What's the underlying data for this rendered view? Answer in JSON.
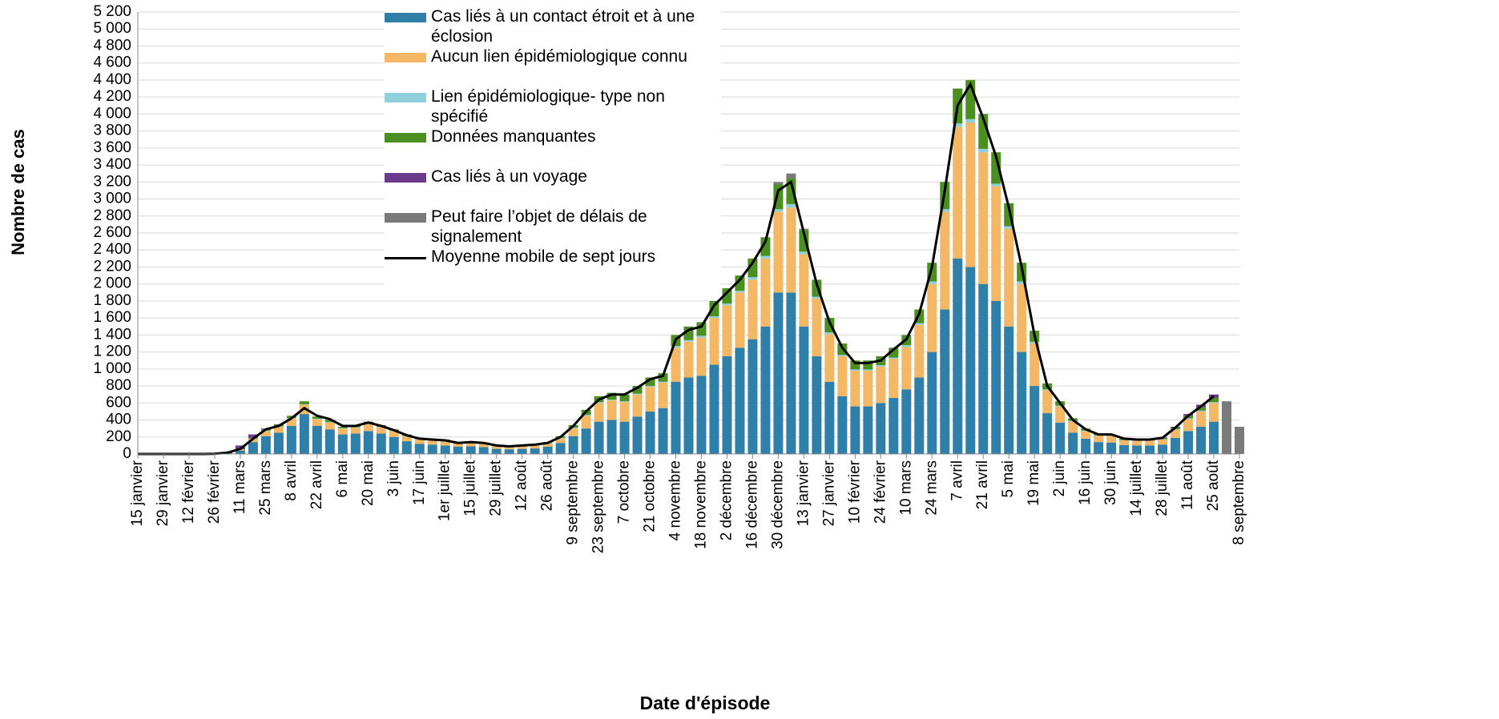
{
  "chart_data": {
    "type": "bar",
    "stacked": true,
    "x_label": "Date d'épisode",
    "y_label": "Nombre de cas",
    "categories": [
      "15 janvier",
      null,
      "29 janvier",
      null,
      "12 février",
      null,
      "26 février",
      null,
      "11 mars",
      null,
      "25 mars",
      null,
      "8 avril",
      null,
      "22 avril",
      null,
      "6 mai",
      null,
      "20 mai",
      null,
      "3 juin",
      null,
      "17 juin",
      null,
      "1er juillet",
      null,
      "15 juillet",
      null,
      "29 juillet",
      null,
      "12 août",
      null,
      "26 août",
      null,
      "9 septembre",
      null,
      "23 septembre",
      null,
      "7 octobre",
      null,
      "21 octobre",
      null,
      "4 novembre",
      null,
      "18 novembre",
      null,
      "2 décembre",
      null,
      "16 décembre",
      null,
      "30 décembre",
      null,
      "13 janvier",
      null,
      "27 janvier",
      null,
      "10 février",
      null,
      "24 février",
      null,
      "10 mars",
      null,
      "24 mars",
      null,
      "7 avril",
      null,
      "21 avril",
      null,
      "5 mai",
      null,
      "19 mai",
      null,
      "2 juin",
      null,
      "16 juin",
      null,
      "30 juin",
      null,
      "14 juillet",
      null,
      "28 juillet",
      null,
      "11 août",
      null,
      "25 août",
      null,
      "8 septembre"
    ],
    "series": [
      {
        "name": "Cas liés à un contact étroit et à une éclosion",
        "color": "#2f7fa8",
        "values": [
          0,
          0,
          0,
          0,
          0,
          0,
          1,
          5,
          40,
          140,
          210,
          250,
          330,
          470,
          330,
          290,
          230,
          240,
          270,
          240,
          200,
          150,
          120,
          110,
          100,
          85,
          90,
          80,
          60,
          55,
          60,
          65,
          85,
          130,
          210,
          300,
          380,
          400,
          380,
          440,
          500,
          540,
          850,
          900,
          920,
          1050,
          1150,
          1250,
          1350,
          1500,
          1900,
          1900,
          1500,
          1150,
          850,
          680,
          560,
          560,
          600,
          660,
          760,
          900,
          1200,
          1700,
          2300,
          2200,
          2000,
          1800,
          1500,
          1200,
          800,
          480,
          370,
          250,
          180,
          140,
          135,
          105,
          100,
          100,
          110,
          190,
          270,
          320,
          380,
          0,
          0
        ]
      },
      {
        "name": "Aucun lien épidémiologique connu",
        "color": "#f2b866",
        "values": [
          0,
          0,
          0,
          0,
          0,
          0,
          0,
          2,
          10,
          40,
          60,
          70,
          90,
          110,
          80,
          80,
          70,
          70,
          80,
          75,
          70,
          60,
          55,
          55,
          55,
          45,
          50,
          40,
          30,
          30,
          30,
          35,
          40,
          55,
          90,
          150,
          220,
          230,
          230,
          260,
          290,
          300,
          400,
          420,
          450,
          550,
          600,
          650,
          700,
          800,
          950,
          1000,
          850,
          680,
          560,
          470,
          420,
          420,
          430,
          460,
          500,
          620,
          800,
          1150,
          1550,
          1700,
          1550,
          1350,
          1150,
          800,
          500,
          270,
          190,
          130,
          90,
          75,
          75,
          55,
          55,
          55,
          60,
          95,
          140,
          180,
          220,
          0,
          0
        ]
      },
      {
        "name": "Lien épidémiologique- type non spécifié",
        "color": "#8fd0dc",
        "values": [
          0,
          0,
          0,
          0,
          0,
          0,
          0,
          0,
          0,
          0,
          5,
          5,
          5,
          5,
          5,
          5,
          5,
          5,
          10,
          5,
          5,
          5,
          5,
          5,
          5,
          5,
          5,
          5,
          5,
          0,
          5,
          5,
          5,
          5,
          10,
          10,
          10,
          10,
          10,
          10,
          10,
          10,
          20,
          20,
          20,
          20,
          20,
          20,
          30,
          30,
          30,
          40,
          30,
          20,
          20,
          15,
          15,
          15,
          15,
          15,
          20,
          20,
          30,
          30,
          40,
          40,
          40,
          30,
          30,
          30,
          20,
          10,
          10,
          10,
          5,
          5,
          5,
          5,
          5,
          5,
          5,
          5,
          10,
          10,
          10,
          0,
          0
        ]
      },
      {
        "name": "Données manquantes",
        "color": "#4a8f1f",
        "values": [
          0,
          0,
          0,
          0,
          0,
          0,
          0,
          0,
          5,
          10,
          15,
          20,
          25,
          35,
          25,
          25,
          15,
          15,
          20,
          20,
          15,
          15,
          10,
          10,
          10,
          5,
          5,
          5,
          5,
          5,
          5,
          5,
          10,
          20,
          30,
          60,
          70,
          80,
          80,
          90,
          100,
          100,
          130,
          160,
          160,
          180,
          180,
          180,
          220,
          220,
          290,
          300,
          250,
          200,
          170,
          135,
          105,
          105,
          105,
          115,
          120,
          160,
          220,
          320,
          410,
          460,
          410,
          370,
          270,
          220,
          130,
          70,
          50,
          30,
          25,
          20,
          15,
          15,
          10,
          10,
          15,
          20,
          30,
          40,
          50,
          0,
          0
        ]
      },
      {
        "name": "Cas liés à un voyage",
        "color": "#6b3b8c",
        "values": [
          0,
          0,
          0,
          0,
          0,
          0,
          2,
          13,
          45,
          40,
          10,
          5,
          0,
          0,
          0,
          0,
          0,
          0,
          0,
          0,
          0,
          0,
          0,
          0,
          0,
          0,
          0,
          0,
          0,
          0,
          0,
          0,
          0,
          0,
          0,
          0,
          0,
          0,
          0,
          0,
          0,
          0,
          0,
          0,
          0,
          0,
          0,
          0,
          0,
          0,
          0,
          0,
          0,
          0,
          0,
          0,
          0,
          0,
          0,
          0,
          0,
          0,
          0,
          0,
          0,
          0,
          0,
          0,
          0,
          0,
          0,
          0,
          0,
          0,
          0,
          0,
          0,
          0,
          5,
          5,
          5,
          10,
          20,
          30,
          40,
          0,
          0
        ]
      },
      {
        "name": "Peut faire l’objet de délais de signalement",
        "color": "#7a7a7a",
        "values": [
          0,
          0,
          0,
          0,
          0,
          0,
          0,
          0,
          0,
          0,
          0,
          0,
          0,
          0,
          0,
          0,
          0,
          0,
          0,
          0,
          0,
          0,
          0,
          0,
          0,
          0,
          0,
          0,
          0,
          0,
          0,
          0,
          0,
          0,
          0,
          0,
          0,
          0,
          0,
          0,
          0,
          0,
          0,
          0,
          0,
          0,
          0,
          0,
          0,
          0,
          30,
          60,
          20,
          0,
          0,
          0,
          0,
          0,
          0,
          0,
          0,
          0,
          0,
          0,
          0,
          0,
          0,
          0,
          0,
          0,
          0,
          0,
          0,
          0,
          0,
          0,
          0,
          0,
          0,
          0,
          0,
          0,
          0,
          0,
          0,
          620,
          320
        ]
      }
    ],
    "line": {
      "name": "Moyenne mobile de sept jours",
      "color": "#000000",
      "values": [
        0,
        0,
        0,
        0,
        0,
        0,
        2,
        15,
        60,
        180,
        290,
        330,
        420,
        540,
        450,
        410,
        330,
        330,
        370,
        330,
        280,
        220,
        180,
        170,
        160,
        130,
        140,
        130,
        100,
        90,
        100,
        110,
        130,
        200,
        330,
        500,
        640,
        700,
        700,
        780,
        880,
        920,
        1350,
        1460,
        1500,
        1750,
        1900,
        2050,
        2250,
        2500,
        3100,
        3200,
        2600,
        2000,
        1550,
        1250,
        1070,
        1070,
        1100,
        1230,
        1350,
        1650,
        2200,
        3100,
        4100,
        4350,
        3950,
        3500,
        2900,
        2200,
        1400,
        800,
        600,
        400,
        290,
        230,
        230,
        180,
        170,
        170,
        190,
        310,
        450,
        560,
        680,
        null,
        null
      ]
    },
    "ylim": [
      0,
      5200
    ],
    "yticks": [
      0,
      200,
      400,
      600,
      800,
      {
        "value": 1000,
        "label": "1 000"
      },
      {
        "value": 1200,
        "label": "1 200"
      },
      {
        "value": 1400,
        "label": "1 400"
      },
      {
        "value": 1600,
        "label": "1 600"
      },
      {
        "value": 1800,
        "label": "1 800"
      },
      {
        "value": 2000,
        "label": "2 000"
      },
      {
        "value": 2200,
        "label": "2 200"
      },
      {
        "value": 2400,
        "label": "2 400"
      },
      {
        "value": 2600,
        "label": "2 600"
      },
      {
        "value": 2800,
        "label": "2 800"
      },
      {
        "value": 3000,
        "label": "3 000"
      },
      {
        "value": 3200,
        "label": "3 200"
      },
      {
        "value": 3400,
        "label": "3 400"
      },
      {
        "value": 3600,
        "label": "3 600"
      },
      {
        "value": 3800,
        "label": "3 800"
      },
      {
        "value": 4000,
        "label": "4 000"
      },
      {
        "value": 4200,
        "label": "4 200"
      },
      {
        "value": 4400,
        "label": "4 400"
      },
      {
        "value": 4600,
        "label": "4 600"
      },
      {
        "value": 4800,
        "label": "4 800"
      },
      {
        "value": 5000,
        "label": "5 000"
      },
      {
        "value": 5200,
        "label": "5 200"
      }
    ],
    "grid": true
  }
}
